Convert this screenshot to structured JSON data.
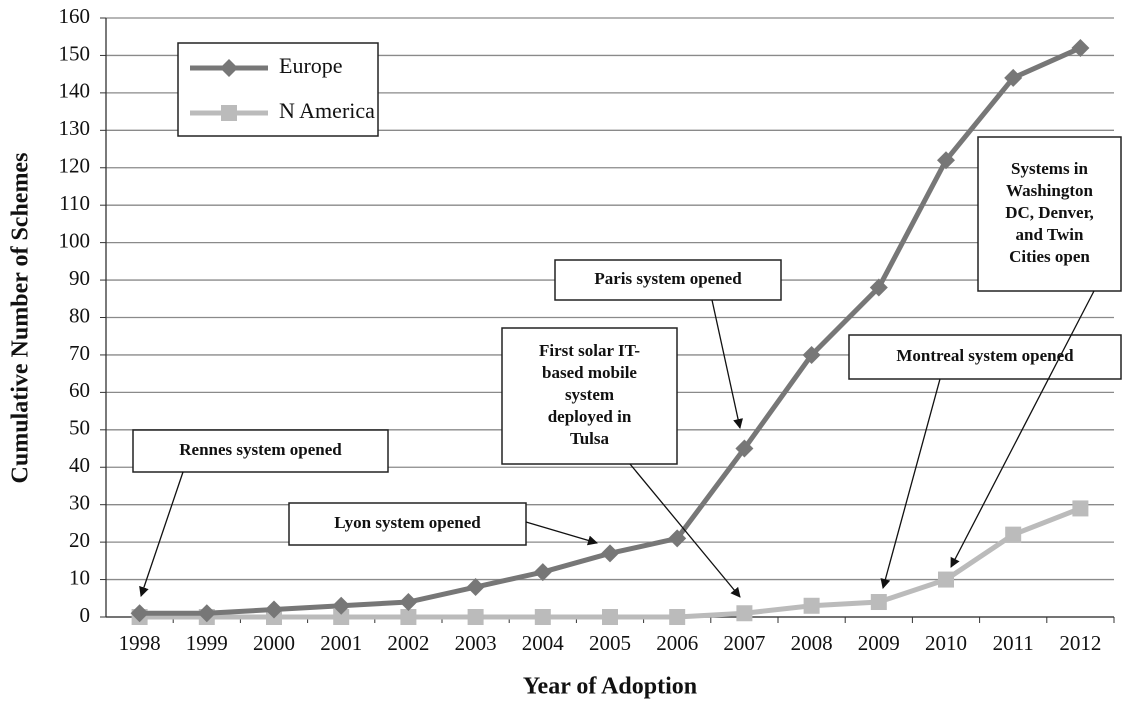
{
  "chart_data": {
    "type": "line",
    "ylabel": "Cumulative Number of Schemes",
    "xlabel": "Year of Adoption",
    "categories": [
      "1998",
      "1999",
      "2000",
      "2001",
      "2002",
      "2003",
      "2004",
      "2005",
      "2006",
      "2007",
      "2008",
      "2009",
      "2010",
      "2011",
      "2012"
    ],
    "series": [
      {
        "name": "Europe",
        "color": "#777777",
        "values": [
          1,
          1,
          2,
          3,
          4,
          8,
          12,
          17,
          21,
          45,
          70,
          88,
          122,
          144,
          152
        ]
      },
      {
        "name": "N America",
        "color": "#bbbbbb",
        "values": [
          0,
          0,
          0,
          0,
          0,
          0,
          0,
          0,
          0,
          1,
          3,
          4,
          10,
          22,
          29
        ]
      }
    ],
    "ylim": [
      0,
      160
    ],
    "yticks": [
      0,
      10,
      20,
      30,
      40,
      50,
      60,
      70,
      80,
      90,
      100,
      110,
      120,
      130,
      140,
      150,
      160
    ],
    "grid": true,
    "legend": "upper left",
    "annotations": [
      {
        "text": [
          "Rennes system opened"
        ]
      },
      {
        "text": [
          "Lyon system opened"
        ]
      },
      {
        "text": [
          "First solar IT-",
          "based mobile",
          "system",
          "deployed in",
          "Tulsa"
        ]
      },
      {
        "text": [
          "Paris system opened"
        ]
      },
      {
        "text": [
          "Montreal system opened"
        ]
      },
      {
        "text": [
          "Systems in",
          "Washington",
          "DC, Denver,",
          "and Twin",
          "Cities open"
        ]
      }
    ]
  }
}
